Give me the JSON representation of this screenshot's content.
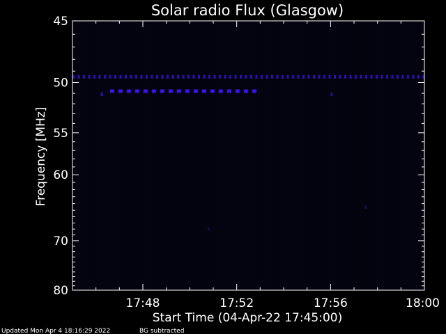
{
  "chart_data": {
    "type": "heatmap",
    "title": "Solar radio Flux (Glasgow)",
    "xlabel": "Start Time (04-Apr-22 17:45:00)",
    "ylabel": "Frequency [MHz]",
    "xlim_minutes_after_start": [
      0,
      15
    ],
    "ylim": [
      45,
      80
    ],
    "y_scale": "reciprocal",
    "y_ticks": [
      45,
      50,
      55,
      60,
      70,
      80
    ],
    "x_ticks": [
      {
        "minute": 3,
        "label": "17:48"
      },
      {
        "minute": 7,
        "label": "17:52"
      },
      {
        "minute": 11,
        "label": "17:56"
      },
      {
        "minute": 15,
        "label": "18:00"
      }
    ],
    "background_color": "#03030e",
    "emission_color": "#3d12ee",
    "features": [
      {
        "kind": "band",
        "freq_mhz": 49.5,
        "start_min": 0.0,
        "end_min": 15.0,
        "intensity": 0.75
      },
      {
        "kind": "band",
        "freq_mhz": 50.8,
        "start_min": 1.6,
        "end_min": 7.9,
        "intensity": 1.0
      },
      {
        "kind": "spot",
        "freq_mhz": 51.1,
        "minute": 1.25,
        "intensity": 0.8
      },
      {
        "kind": "spot",
        "freq_mhz": 51.1,
        "minute": 11.05,
        "intensity": 0.6
      },
      {
        "kind": "spot",
        "freq_mhz": 64.5,
        "minute": 12.5,
        "intensity": 0.3
      },
      {
        "kind": "spot",
        "freq_mhz": 68.0,
        "minute": 5.8,
        "intensity": 0.25
      }
    ]
  },
  "footer": {
    "updated": "Updated Mon Apr  4 18:16:29 2022",
    "note": "BG subtracted"
  }
}
